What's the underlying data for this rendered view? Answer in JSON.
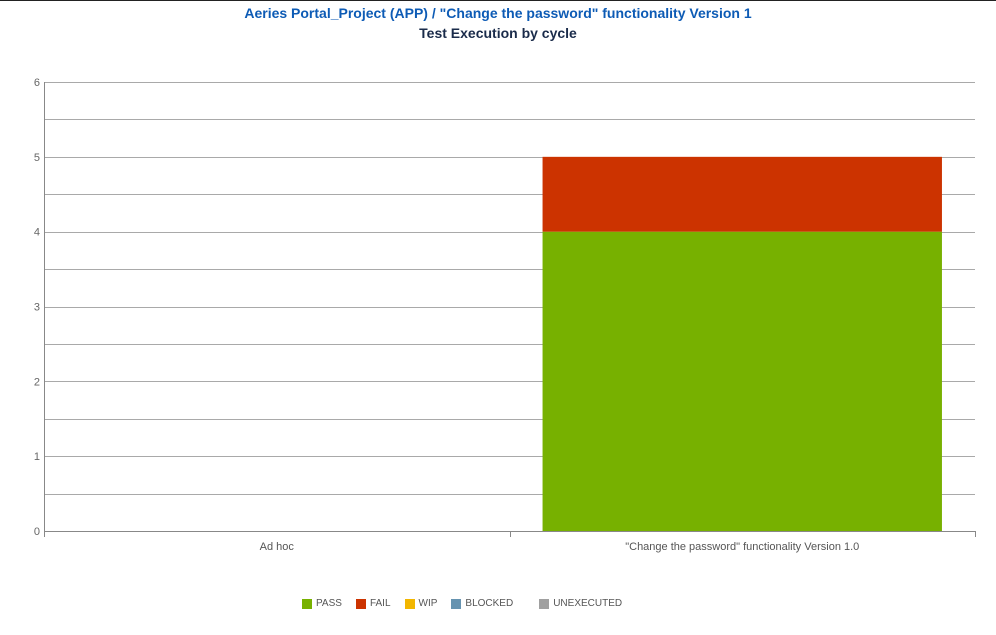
{
  "header": {
    "project": "Aeries Portal_Project (APP)",
    "separator": " / ",
    "version": "\"Change the password\" functionality Version 1",
    "subtitle": "Test Execution by cycle"
  },
  "colors": {
    "pass": "#77b100",
    "fail": "#cc3300",
    "wip": "#f2b600",
    "blocked": "#6693b0",
    "unexecuted": "#a0a0a0",
    "grid": "#a9a9a9",
    "axis": "#888888"
  },
  "legend": [
    {
      "key": "pass",
      "label": "PASS"
    },
    {
      "key": "fail",
      "label": "FAIL"
    },
    {
      "key": "wip",
      "label": "WIP"
    },
    {
      "key": "blocked",
      "label": "BLOCKED"
    },
    {
      "key": "unexecuted",
      "label": "UNEXECUTED"
    }
  ],
  "chart_data": {
    "type": "bar",
    "stacked": true,
    "title": "Aeries Portal_Project (APP) / \"Change the password\" functionality Version 1",
    "subtitle": "Test Execution by cycle",
    "categories": [
      "Ad hoc",
      "\"Change the password\" functionality Version 1.0"
    ],
    "series": [
      {
        "name": "PASS",
        "key": "pass",
        "values": [
          0,
          4
        ]
      },
      {
        "name": "FAIL",
        "key": "fail",
        "values": [
          0,
          1
        ]
      },
      {
        "name": "WIP",
        "key": "wip",
        "values": [
          0,
          0
        ]
      },
      {
        "name": "BLOCKED",
        "key": "blocked",
        "values": [
          0,
          0
        ]
      },
      {
        "name": "UNEXECUTED",
        "key": "unexecuted",
        "values": [
          0,
          0
        ]
      }
    ],
    "ylim": [
      0,
      6
    ],
    "yticks": [
      0,
      1,
      2,
      3,
      4,
      5,
      6
    ],
    "grid": true,
    "legend_position": "bottom"
  }
}
